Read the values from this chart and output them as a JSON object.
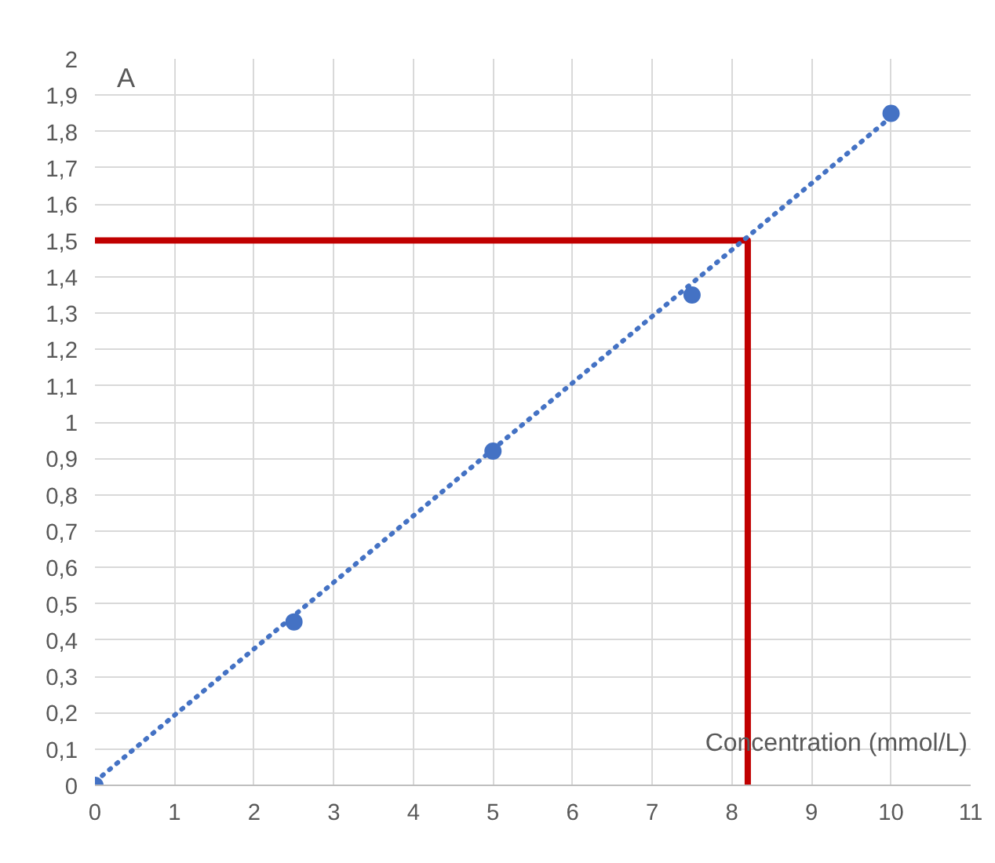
{
  "chart_data": {
    "type": "scatter",
    "xlabel": "Concentration (mmol/L)",
    "annotations": [
      "A"
    ],
    "xlim": [
      0,
      11
    ],
    "ylim": [
      0,
      2
    ],
    "xticks": [
      0,
      1,
      2,
      3,
      4,
      5,
      6,
      7,
      8,
      9,
      10,
      11
    ],
    "yticks": [
      0,
      {
        "value": 0.1,
        "label": "0,1"
      },
      {
        "value": 0.2,
        "label": "0,2"
      },
      {
        "value": 0.3,
        "label": "0,3"
      },
      {
        "value": 0.4,
        "label": "0,4"
      },
      {
        "value": 0.5,
        "label": "0,5"
      },
      {
        "value": 0.6,
        "label": "0,6"
      },
      {
        "value": 0.7,
        "label": "0,7"
      },
      {
        "value": 0.8,
        "label": "0,8"
      },
      {
        "value": 0.9,
        "label": "0,9"
      },
      1,
      {
        "value": 1.1,
        "label": "1,1"
      },
      {
        "value": 1.2,
        "label": "1,2"
      },
      {
        "value": 1.3,
        "label": "1,3"
      },
      {
        "value": 1.4,
        "label": "1,4"
      },
      {
        "value": 1.5,
        "label": "1,5"
      },
      {
        "value": 1.6,
        "label": "1,6"
      },
      {
        "value": 1.7,
        "label": "1,7"
      },
      {
        "value": 1.8,
        "label": "1,8"
      },
      {
        "value": 1.9,
        "label": "1,9"
      },
      2
    ],
    "grid": true,
    "marker": "circle",
    "series": [
      {
        "type": "line",
        "color": "#c00000",
        "x": [
          0,
          8.2,
          8.2
        ],
        "values": [
          1.5,
          1.5,
          0
        ],
        "line_style": "solid",
        "marker": "none"
      },
      {
        "type": "line",
        "color": "#4472c4",
        "x": [
          0,
          10
        ],
        "values": [
          0.01,
          1.84
        ],
        "line_style": "dotted",
        "marker": "none"
      },
      {
        "color": "#4472c4",
        "x": [
          0,
          2.5,
          5,
          7.5,
          10
        ],
        "values": [
          0,
          0.45,
          0.92,
          1.35,
          1.85
        ]
      }
    ]
  }
}
